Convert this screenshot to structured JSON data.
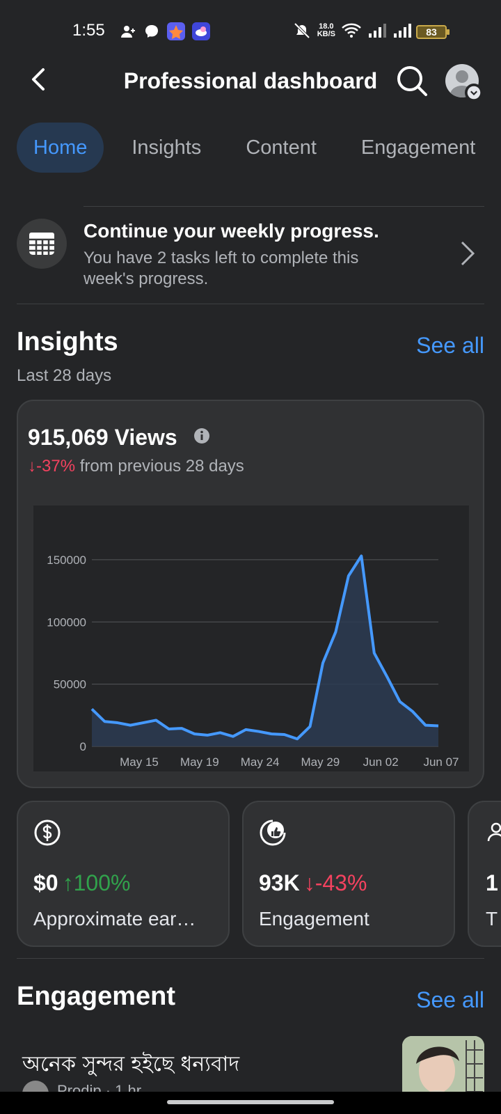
{
  "status_bar": {
    "time": "1:55",
    "net_speed_value": "18.0",
    "net_speed_unit": "KB/S",
    "battery": "83"
  },
  "header": {
    "title": "Professional dashboard"
  },
  "tabs": [
    {
      "label": "Home",
      "active": true
    },
    {
      "label": "Insights",
      "active": false
    },
    {
      "label": "Content",
      "active": false
    },
    {
      "label": "Engagement",
      "active": false
    }
  ],
  "weekly_progress": {
    "title": "Continue your weekly progress.",
    "subtitle": "You have 2 tasks left to complete this week's progress."
  },
  "insights": {
    "title": "Insights",
    "see_all": "See all",
    "period": "Last 28 days",
    "views_total": "915,069 Views",
    "views_change": "↓-37%",
    "views_change_suffix": " from previous 28 days"
  },
  "chart_data": {
    "type": "area",
    "x_tick_labels": [
      "May 15",
      "May 19",
      "May 24",
      "May 29",
      "Jun 02",
      "Jun 07"
    ],
    "yticks": [
      0,
      50000,
      100000,
      150000
    ],
    "ylim": [
      0,
      160000
    ],
    "grid": true,
    "series": [
      {
        "color": "#4599ff",
        "values": [
          30000,
          20000,
          19000,
          17000,
          19000,
          21000,
          14000,
          14500,
          10000,
          9000,
          11000,
          8000,
          13500,
          12000,
          10000,
          9500,
          6000,
          16000,
          67000,
          92000,
          137000,
          153000,
          75000,
          56000,
          36000,
          28000,
          17000,
          16500
        ]
      }
    ]
  },
  "metrics": [
    {
      "icon": "dollar-icon",
      "value": "$0",
      "change": "↑100%",
      "direction": "up",
      "label": "Approximate ear…"
    },
    {
      "icon": "thumbs-up-icon",
      "value": "93K",
      "change": "↓-43%",
      "direction": "down",
      "label": "Engagement"
    },
    {
      "icon": "people-icon",
      "value": "1",
      "change": "",
      "direction": "",
      "label": "T"
    }
  ],
  "engagement": {
    "title": "Engagement",
    "see_all": "See all",
    "items": [
      {
        "text": "অনেক সুন্দর হইছে ধন্যবাদ",
        "meta": "Prodip · 1 hr"
      }
    ]
  }
}
